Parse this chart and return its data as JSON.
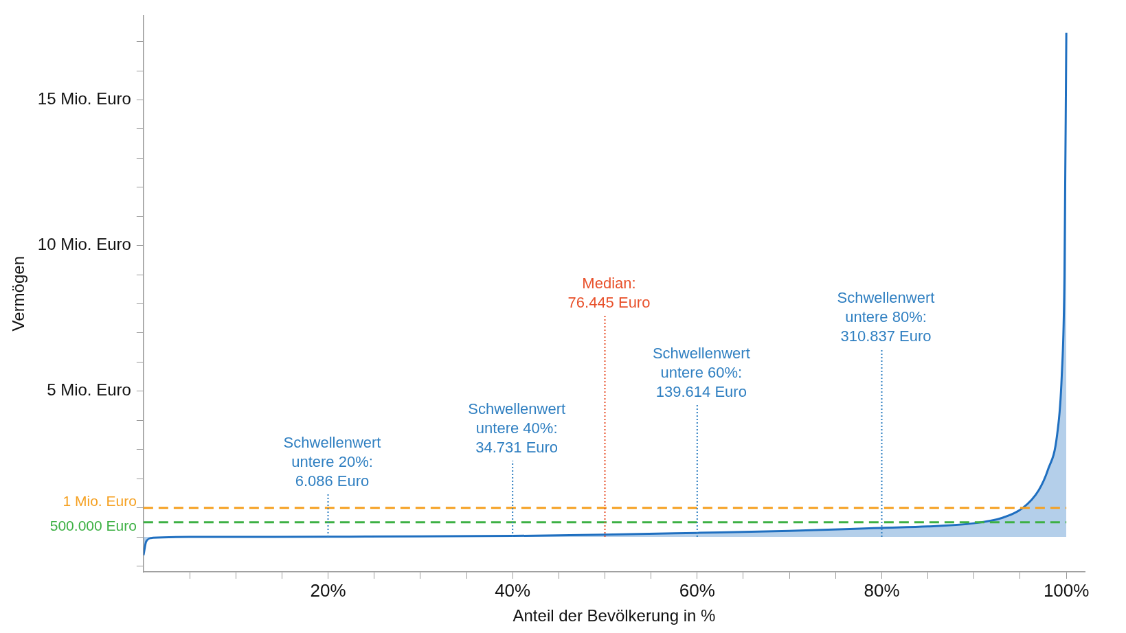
{
  "chart_data": {
    "type": "area",
    "xlabel": "Anteil der Bevölkerung in %",
    "ylabel": "Vermögen",
    "x": [
      0,
      0.3,
      1,
      5,
      10,
      20,
      30,
      40,
      50,
      60,
      70,
      80,
      85,
      90,
      93,
      95.3,
      97,
      98,
      99,
      99.5,
      99.8,
      100
    ],
    "series": [
      {
        "color": "#1f6fc0",
        "values": [
          -0.63,
          -0.15,
          -0.03,
          0,
          0,
          0.006086,
          0.02,
          0.034731,
          0.076445,
          0.139614,
          0.21,
          0.310837,
          0.36,
          0.47,
          0.65,
          1,
          1.6,
          2.3,
          3.5,
          5.5,
          9,
          17.3
        ]
      }
    ],
    "xlim": [
      0,
      102
    ],
    "xticks": [
      {
        "value": 5,
        "label": null
      },
      {
        "value": 10,
        "label": null
      },
      {
        "value": 15,
        "label": null
      },
      {
        "value": 20,
        "label": "20%"
      },
      {
        "value": 25,
        "label": null
      },
      {
        "value": 30,
        "label": null
      },
      {
        "value": 35,
        "label": null
      },
      {
        "value": 40,
        "label": "40%"
      },
      {
        "value": 45,
        "label": null
      },
      {
        "value": 50,
        "label": null
      },
      {
        "value": 55,
        "label": null
      },
      {
        "value": 60,
        "label": "60%"
      },
      {
        "value": 65,
        "label": null
      },
      {
        "value": 70,
        "label": null
      },
      {
        "value": 75,
        "label": null
      },
      {
        "value": 80,
        "label": "80%"
      },
      {
        "value": 85,
        "label": null
      },
      {
        "value": 90,
        "label": null
      },
      {
        "value": 95,
        "label": null
      },
      {
        "value": 100,
        "label": "100%"
      }
    ],
    "ylim": [
      -1.2,
      17.9
    ],
    "yticks": [
      {
        "value": -1,
        "label": null
      },
      {
        "value": 0,
        "label": null
      },
      {
        "value": 1,
        "label": null
      },
      {
        "value": 2,
        "label": null
      },
      {
        "value": 3,
        "label": null
      },
      {
        "value": 4,
        "label": null
      },
      {
        "value": 5,
        "label": "5 Mio. Euro"
      },
      {
        "value": 6,
        "label": null
      },
      {
        "value": 7,
        "label": null
      },
      {
        "value": 8,
        "label": null
      },
      {
        "value": 9,
        "label": null
      },
      {
        "value": 10,
        "label": "10 Mio. Euro"
      },
      {
        "value": 11,
        "label": null
      },
      {
        "value": 12,
        "label": null
      },
      {
        "value": 13,
        "label": null
      },
      {
        "value": 14,
        "label": null
      },
      {
        "value": 15,
        "label": "15 Mio. Euro"
      },
      {
        "value": 16,
        "label": null
      },
      {
        "value": 17,
        "label": null
      }
    ],
    "ref_lines": [
      {
        "axis": "y",
        "value": 1,
        "label": "1 Mio. Euro",
        "color": "#f5a020",
        "line_style": "dashed"
      },
      {
        "axis": "y",
        "value": 0.5,
        "label": "500.000 Euro",
        "color": "#3cb043",
        "line_style": "dashed"
      },
      {
        "axis": "x",
        "value": 20,
        "label": "Schwellenwert\nuntere 20%:\n6.086 Euro",
        "color": "#2f7fc1",
        "line_style": "dotted"
      },
      {
        "axis": "x",
        "value": 40,
        "label": "Schwellenwert\nuntere 40%:\n34.731 Euro",
        "color": "#2f7fc1",
        "line_style": "dotted"
      },
      {
        "axis": "x",
        "value": 50,
        "color": "#e8502a",
        "line_style": "dotted"
      },
      {
        "axis": "x",
        "value": 60,
        "label": "Schwellenwert\nuntere 60%:\n139.614 Euro",
        "color": "#2f7fc1",
        "line_style": "dotted"
      },
      {
        "axis": "x",
        "value": 80,
        "label": "Schwellenwert\nuntere 80%:\n310.837 Euro",
        "color": "#2f7fc1",
        "line_style": "dotted"
      }
    ],
    "annotations": [
      "Median:\n76.445 Euro"
    ],
    "grid": false,
    "legend": false,
    "marker": "none"
  }
}
